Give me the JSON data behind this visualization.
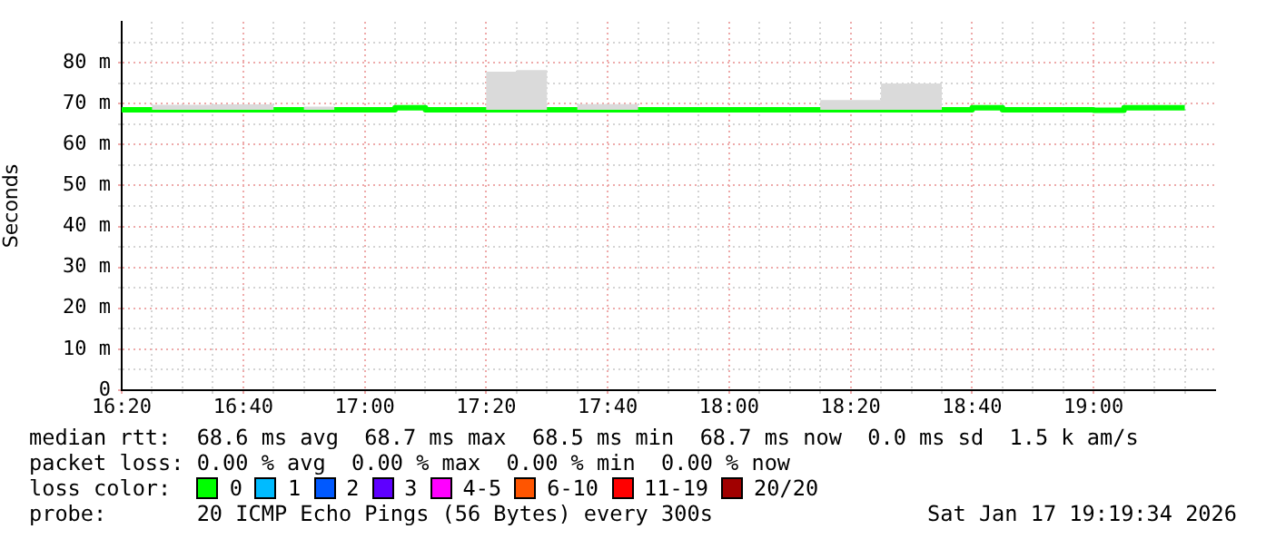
{
  "chart_data": {
    "type": "step",
    "ylabel": "Seconds",
    "legend_title": "loss color:",
    "legend": "bottom",
    "grid": true,
    "x": [
      "2026-01-17T16:20",
      "2026-01-17T16:25",
      "2026-01-17T16:30",
      "2026-01-17T16:35",
      "2026-01-17T16:40",
      "2026-01-17T16:45",
      "2026-01-17T16:50",
      "2026-01-17T16:55",
      "2026-01-17T17:00",
      "2026-01-17T17:05",
      "2026-01-17T17:10",
      "2026-01-17T17:15",
      "2026-01-17T17:20",
      "2026-01-17T17:25",
      "2026-01-17T17:30",
      "2026-01-17T17:35",
      "2026-01-17T17:40",
      "2026-01-17T17:45",
      "2026-01-17T17:50",
      "2026-01-17T17:55",
      "2026-01-17T18:00",
      "2026-01-17T18:05",
      "2026-01-17T18:10",
      "2026-01-17T18:15",
      "2026-01-17T18:20",
      "2026-01-17T18:25",
      "2026-01-17T18:30",
      "2026-01-17T18:35",
      "2026-01-17T18:40",
      "2026-01-17T18:45",
      "2026-01-17T18:50",
      "2026-01-17T18:55",
      "2026-01-17T19:00",
      "2026-01-17T19:05",
      "2026-01-17T19:10",
      "2026-01-17T19:15"
    ],
    "series": [
      {
        "name": "0",
        "color": "#00ff00",
        "values": [
          68.5,
          68.5,
          68.5,
          68.5,
          68.5,
          68.5,
          68.5,
          68.5,
          68.5,
          68.5,
          69,
          68.5,
          68.5,
          68.5,
          68.5,
          68.5,
          68.5,
          68.5,
          68.5,
          68.5,
          68.5,
          68.5,
          68.5,
          68.5,
          68.5,
          68.5,
          68.5,
          68.5,
          68.5,
          69,
          68.5,
          68.5,
          68.5,
          68.4,
          69,
          69
        ],
        "lower": [
          68.5,
          68.5,
          68.5,
          68.5,
          68.5,
          68.5,
          68.5,
          68.5,
          68.5,
          68.5,
          69,
          68.5,
          68.5,
          68.5,
          68.5,
          68.5,
          68.5,
          68.5,
          68.5,
          68.5,
          68.5,
          68.5,
          68.5,
          68.5,
          68.5,
          68.5,
          68.5,
          68.5,
          68.5,
          69,
          68.5,
          68.5,
          68.5,
          68.4,
          69,
          69
        ],
        "upper": [
          68.5,
          68.5,
          69.7,
          69.7,
          69.8,
          69.8,
          68.5,
          69.3,
          68.5,
          68.5,
          69,
          68.5,
          68.5,
          77.8,
          78.2,
          68.5,
          69.9,
          69.9,
          68.5,
          68.5,
          68.5,
          68.5,
          68.5,
          68.5,
          70.9,
          70.9,
          74.9,
          74.9,
          68.5,
          69,
          68.5,
          68.5,
          68.5,
          68.4,
          69,
          69
        ]
      },
      {
        "name": "1",
        "color": "#00bbff",
        "values": [
          null,
          null,
          null,
          null,
          null,
          null,
          null,
          null,
          null,
          null,
          null,
          null,
          null,
          null,
          null,
          null,
          null,
          null,
          null,
          null,
          null,
          null,
          null,
          null,
          null,
          null,
          null,
          null,
          null,
          null,
          null,
          null,
          null,
          null,
          null,
          null
        ]
      },
      {
        "name": "2",
        "color": "#0059ff",
        "values": [
          null,
          null,
          null,
          null,
          null,
          null,
          null,
          null,
          null,
          null,
          null,
          null,
          null,
          null,
          null,
          null,
          null,
          null,
          null,
          null,
          null,
          null,
          null,
          null,
          null,
          null,
          null,
          null,
          null,
          null,
          null,
          null,
          null,
          null,
          null,
          null
        ]
      },
      {
        "name": "3",
        "color": "#5e00ff",
        "values": [
          null,
          null,
          null,
          null,
          null,
          null,
          null,
          null,
          null,
          null,
          null,
          null,
          null,
          null,
          null,
          null,
          null,
          null,
          null,
          null,
          null,
          null,
          null,
          null,
          null,
          null,
          null,
          null,
          null,
          null,
          null,
          null,
          null,
          null,
          null,
          null
        ]
      },
      {
        "name": "4-5",
        "color": "#ff00ff",
        "values": [
          null,
          null,
          null,
          null,
          null,
          null,
          null,
          null,
          null,
          null,
          null,
          null,
          null,
          null,
          null,
          null,
          null,
          null,
          null,
          null,
          null,
          null,
          null,
          null,
          null,
          null,
          null,
          null,
          null,
          null,
          null,
          null,
          null,
          null,
          null,
          null
        ]
      },
      {
        "name": "6-10",
        "color": "#ff5500",
        "values": [
          null,
          null,
          null,
          null,
          null,
          null,
          null,
          null,
          null,
          null,
          null,
          null,
          null,
          null,
          null,
          null,
          null,
          null,
          null,
          null,
          null,
          null,
          null,
          null,
          null,
          null,
          null,
          null,
          null,
          null,
          null,
          null,
          null,
          null,
          null,
          null
        ]
      },
      {
        "name": "11-19",
        "color": "#ff0000",
        "values": [
          null,
          null,
          null,
          null,
          null,
          null,
          null,
          null,
          null,
          null,
          null,
          null,
          null,
          null,
          null,
          null,
          null,
          null,
          null,
          null,
          null,
          null,
          null,
          null,
          null,
          null,
          null,
          null,
          null,
          null,
          null,
          null,
          null,
          null,
          null,
          null
        ]
      },
      {
        "name": "20/20",
        "color": "#a10000",
        "values": [
          null,
          null,
          null,
          null,
          null,
          null,
          null,
          null,
          null,
          null,
          null,
          null,
          null,
          null,
          null,
          null,
          null,
          null,
          null,
          null,
          null,
          null,
          null,
          null,
          null,
          null,
          null,
          null,
          null,
          null,
          null,
          null,
          null,
          null,
          null,
          null
        ]
      }
    ],
    "xlim": [
      "2026-01-17T16:20",
      "2026-01-17T19:20"
    ],
    "xticks": [
      {
        "value": "2026-01-17T16:20",
        "label": "16:20"
      },
      {
        "value": "2026-01-17T16:25",
        "label": null
      },
      {
        "value": "2026-01-17T16:30",
        "label": null
      },
      {
        "value": "2026-01-17T16:35",
        "label": null
      },
      {
        "value": "2026-01-17T16:40",
        "label": "16:40"
      },
      {
        "value": "2026-01-17T16:45",
        "label": null
      },
      {
        "value": "2026-01-17T16:50",
        "label": null
      },
      {
        "value": "2026-01-17T16:55",
        "label": null
      },
      {
        "value": "2026-01-17T17:00",
        "label": "17:00"
      },
      {
        "value": "2026-01-17T17:05",
        "label": null
      },
      {
        "value": "2026-01-17T17:10",
        "label": null
      },
      {
        "value": "2026-01-17T17:15",
        "label": null
      },
      {
        "value": "2026-01-17T17:20",
        "label": "17:20"
      },
      {
        "value": "2026-01-17T17:25",
        "label": null
      },
      {
        "value": "2026-01-17T17:30",
        "label": null
      },
      {
        "value": "2026-01-17T17:35",
        "label": null
      },
      {
        "value": "2026-01-17T17:40",
        "label": "17:40"
      },
      {
        "value": "2026-01-17T17:45",
        "label": null
      },
      {
        "value": "2026-01-17T17:50",
        "label": null
      },
      {
        "value": "2026-01-17T17:55",
        "label": null
      },
      {
        "value": "2026-01-17T18:00",
        "label": "18:00"
      },
      {
        "value": "2026-01-17T18:05",
        "label": null
      },
      {
        "value": "2026-01-17T18:10",
        "label": null
      },
      {
        "value": "2026-01-17T18:15",
        "label": null
      },
      {
        "value": "2026-01-17T18:20",
        "label": "18:20"
      },
      {
        "value": "2026-01-17T18:25",
        "label": null
      },
      {
        "value": "2026-01-17T18:30",
        "label": null
      },
      {
        "value": "2026-01-17T18:35",
        "label": null
      },
      {
        "value": "2026-01-17T18:40",
        "label": "18:40"
      },
      {
        "value": "2026-01-17T18:45",
        "label": null
      },
      {
        "value": "2026-01-17T18:50",
        "label": null
      },
      {
        "value": "2026-01-17T18:55",
        "label": null
      },
      {
        "value": "2026-01-17T19:00",
        "label": "19:00"
      },
      {
        "value": "2026-01-17T19:05",
        "label": null
      },
      {
        "value": "2026-01-17T19:10",
        "label": null
      },
      {
        "value": "2026-01-17T19:15",
        "label": null
      }
    ],
    "ylim": [
      0,
      90
    ],
    "yticks": [
      0,
      {
        "value": 5,
        "label": null
      },
      {
        "value": 10,
        "label": "10 m"
      },
      {
        "value": 15,
        "label": null
      },
      {
        "value": 20,
        "label": "20 m"
      },
      {
        "value": 25,
        "label": null
      },
      {
        "value": 30,
        "label": "30 m"
      },
      {
        "value": 35,
        "label": null
      },
      {
        "value": 40,
        "label": "40 m"
      },
      {
        "value": 45,
        "label": null
      },
      {
        "value": 50,
        "label": "50 m"
      },
      {
        "value": 55,
        "label": null
      },
      {
        "value": 60,
        "label": "60 m"
      },
      {
        "value": 65,
        "label": null
      },
      {
        "value": 70,
        "label": "70 m"
      },
      {
        "value": 75,
        "label": null
      },
      {
        "value": 80,
        "label": "80 m"
      },
      {
        "value": 85,
        "label": null
      }
    ],
    "annotations": [
      "median rtt:  68.6 ms avg  68.7 ms max  68.5 ms min  68.7 ms now  0.0 ms sd  1.5 k am/s",
      "packet loss: 0.00 % avg  0.00 % max  0.00 % min  0.00 % now",
      "probe:       20 ICMP Echo Pings (56 Bytes) every 300s",
      "Sat Jan 17 19:19:34 2026"
    ]
  }
}
